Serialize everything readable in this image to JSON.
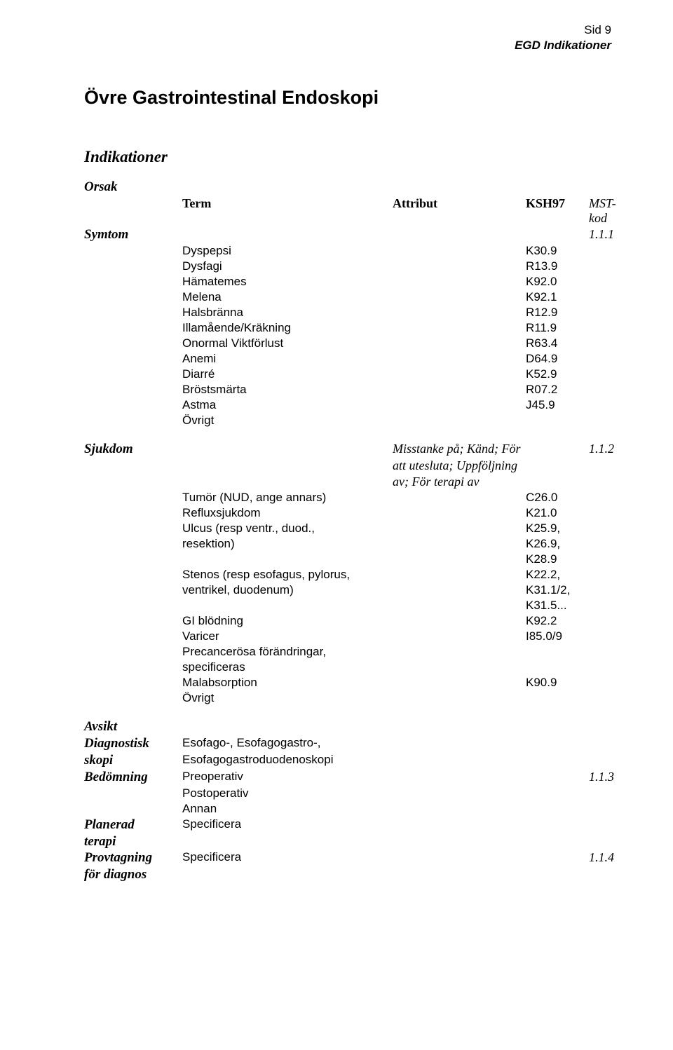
{
  "header": {
    "page_label": "Sid 9",
    "running_head": "EGD Indikationer"
  },
  "title": "Övre Gastrointestinal Endoskopi",
  "section_heading": "Indikationer",
  "table_headers": {
    "orsak": "Orsak",
    "term": "Term",
    "attribut": "Attribut",
    "ksh97": "KSH97",
    "mst_kod": "MST-kod"
  },
  "side_labels": {
    "symtom": "Symtom",
    "sjukdom": "Sjukdom",
    "avsikt": "Avsikt",
    "diagnostisk_skopi_l1": "Diagnostisk",
    "diagnostisk_skopi_l2": "skopi",
    "bedomning": "Bedömning",
    "planerad_terapi_l1": "Planerad",
    "planerad_terapi_l2": "terapi",
    "provtagning_l1": "Provtagning",
    "provtagning_l2": "för diagnos"
  },
  "mst": {
    "symtom": "1.1.1",
    "sjukdom": "1.1.2",
    "bedomning": "1.1.3",
    "provtagning": "1.1.4"
  },
  "attribut": {
    "sjukdom_l1": "Misstanke på; Känd; För",
    "sjukdom_l2": "att utesluta; Uppföljning",
    "sjukdom_l3": "av; För terapi av"
  },
  "symtom_rows": [
    {
      "term": "Dyspepsi",
      "ksh": "K30.9"
    },
    {
      "term": "Dysfagi",
      "ksh": "R13.9"
    },
    {
      "term": "Hämatemes",
      "ksh": "K92.0"
    },
    {
      "term": "Melena",
      "ksh": "K92.1"
    },
    {
      "term": "Halsbränna",
      "ksh": "R12.9"
    },
    {
      "term": "Illamående/Kräkning",
      "ksh": "R11.9"
    },
    {
      "term": "Onormal Viktförlust",
      "ksh": "R63.4"
    },
    {
      "term": "Anemi",
      "ksh": "D64.9"
    },
    {
      "term": "Diarré",
      "ksh": "K52.9"
    },
    {
      "term": "Bröstsmärta",
      "ksh": "R07.2"
    },
    {
      "term": "Astma",
      "ksh": "J45.9"
    },
    {
      "term": "Övrigt",
      "ksh": ""
    }
  ],
  "sjukdom_rows": {
    "tumor": {
      "term": "Tumör (NUD, ange annars)",
      "ksh": "C26.0"
    },
    "reflux": {
      "term": "Refluxsjukdom",
      "ksh": "K21.0"
    },
    "ulcus_l1": {
      "term": "Ulcus (resp ventr., duod.,",
      "ksh": "K25.9,"
    },
    "ulcus_l2": {
      "term": "resektion)",
      "ksh": "K26.9,"
    },
    "ulcus_l3": {
      "term": "",
      "ksh": "K28.9"
    },
    "stenos_l1": {
      "term": "Stenos (resp esofagus, pylorus,",
      "ksh": "K22.2,"
    },
    "stenos_l2": {
      "term": "ventrikel, duodenum)",
      "ksh": "K31.1/2,"
    },
    "stenos_l3": {
      "term": "",
      "ksh": "K31.5..."
    },
    "gi": {
      "term": "GI blödning",
      "ksh": "K92.2"
    },
    "varicer": {
      "term": "Varicer",
      "ksh": "I85.0/9"
    },
    "precan_l1": {
      "term": "Precancerösa förändringar,",
      "ksh": ""
    },
    "precan_l2": {
      "term": "specificeras",
      "ksh": ""
    },
    "malabs": {
      "term": "Malabsorption",
      "ksh": "K90.9"
    },
    "ovrigt": {
      "term": "Övrigt",
      "ksh": ""
    }
  },
  "avsikt_rows": {
    "diag_l1": "Esofago-, Esofagogastro-,",
    "diag_l2": "Esofagogastroduodenoskopi",
    "bed_1": "Preoperativ",
    "bed_2": "Postoperativ",
    "bed_3": "Annan",
    "plan": "Specificera",
    "prov": "Specificera"
  }
}
